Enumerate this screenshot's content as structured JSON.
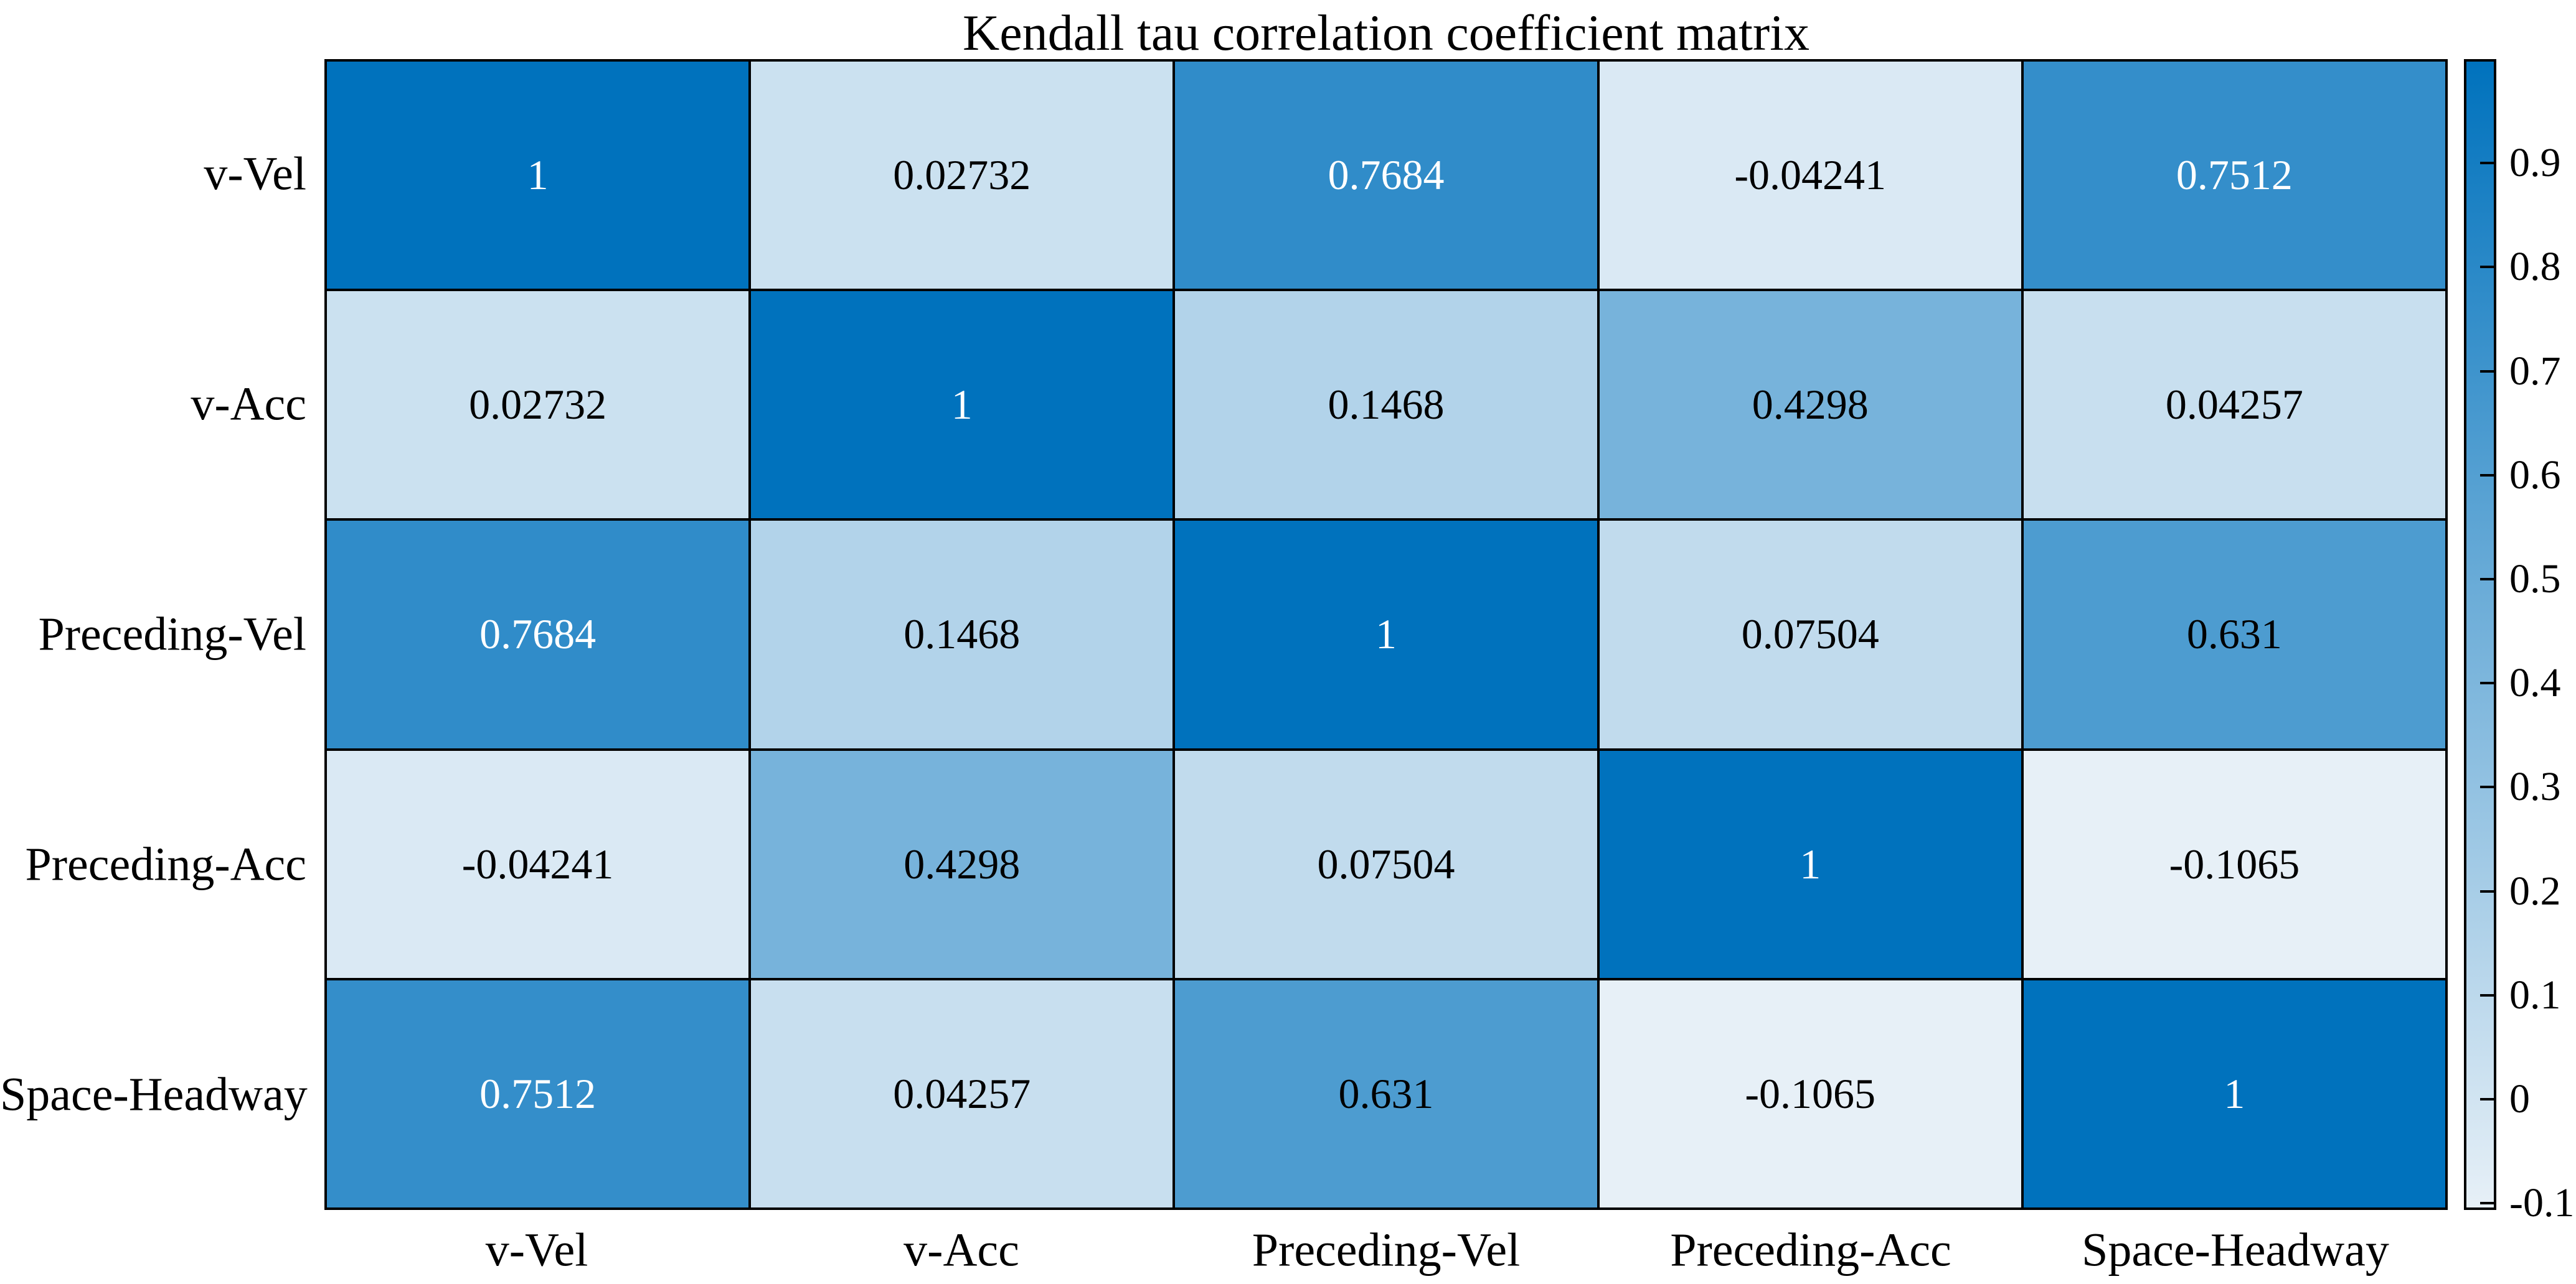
{
  "chart_data": {
    "type": "heatmap",
    "title": "Kendall tau correlation coefficient matrix",
    "categories": [
      "v-Vel",
      "v-Acc",
      "Preceding-Vel",
      "Preceding-Acc",
      "Space-Headway"
    ],
    "matrix": [
      [
        1,
        0.02732,
        0.7684,
        -0.04241,
        0.7512
      ],
      [
        0.02732,
        1,
        0.1468,
        0.4298,
        0.04257
      ],
      [
        0.7684,
        0.1468,
        1,
        0.07504,
        0.631
      ],
      [
        -0.04241,
        0.4298,
        0.07504,
        1,
        -0.1065
      ],
      [
        0.7512,
        0.04257,
        0.631,
        -0.1065,
        1
      ]
    ],
    "colorbar": {
      "position": "right",
      "min": -0.1065,
      "max": 1,
      "tick_labels": [
        "0.9",
        "0.8",
        "0.7",
        "0.6",
        "0.5",
        "0.4",
        "0.3",
        "0.2",
        "0.1",
        "0",
        "-0.1"
      ],
      "tick_values": [
        0.9,
        0.8,
        0.7,
        0.6,
        0.5,
        0.4,
        0.3,
        0.2,
        0.1,
        0,
        -0.1
      ]
    },
    "colors": {
      "cmap_low": "#e7f0f7",
      "cmap_high": "#0072bd",
      "grid_line": "#000000",
      "cell_text_dark": "#000000",
      "cell_text_light": "#ffffff",
      "white_text_threshold": 0.7
    },
    "grid": true,
    "legend_position": "none"
  }
}
